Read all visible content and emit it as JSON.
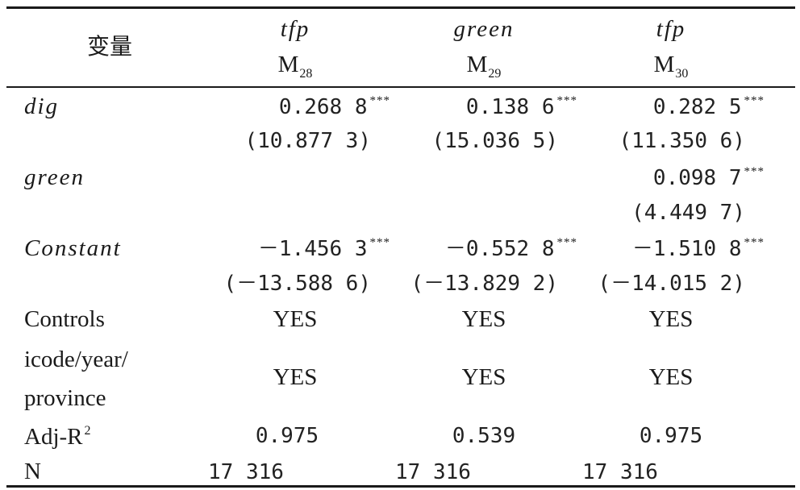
{
  "header": {
    "var_label": "变量",
    "columns": [
      {
        "dep": "tfp",
        "model": "M",
        "model_sub": "28"
      },
      {
        "dep": "green",
        "model": "M",
        "model_sub": "29"
      },
      {
        "dep": "tfp",
        "model": "M",
        "model_sub": "30"
      }
    ]
  },
  "rows": {
    "dig": {
      "label": "dig",
      "coefs": [
        "0.268 8",
        "0.138 6",
        "0.282 5"
      ],
      "stars": [
        "***",
        "***",
        "***"
      ],
      "t": [
        "(10.877 3)",
        "(15.036 5)",
        "(11.350 6)"
      ]
    },
    "green": {
      "label": "green",
      "coef": "0.098 7",
      "star": "***",
      "t": "(4.449 7)"
    },
    "constant": {
      "label": "Constant",
      "coefs": [
        "－1.456 3",
        "－0.552 8",
        "－1.510 8"
      ],
      "stars": [
        "***",
        "***",
        "***"
      ],
      "t": [
        "(－13.588 6)",
        "(－13.829 2)",
        "(－14.015 2)"
      ]
    },
    "controls": {
      "label": "Controls",
      "values": [
        "YES",
        "YES",
        "YES"
      ]
    },
    "fe": {
      "label_line1": "icode/year/",
      "label_line2": "province",
      "values": [
        "YES",
        "YES",
        "YES"
      ]
    },
    "adjr2": {
      "label": "Adj-R",
      "label_sup": "2",
      "values": [
        "0.975",
        "0.539",
        "0.975"
      ]
    },
    "n": {
      "label": "N",
      "values": [
        "17 316",
        "17 316",
        "17 316"
      ]
    }
  }
}
